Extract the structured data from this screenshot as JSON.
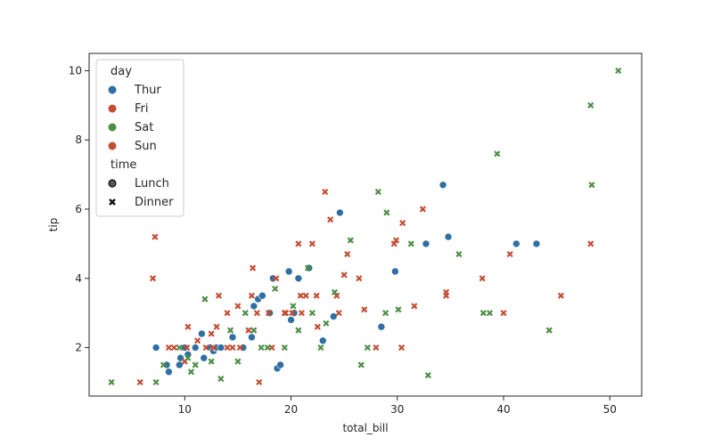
{
  "chart_data": {
    "type": "scatter",
    "title": "",
    "xlabel": "total_bill",
    "ylabel": "tip",
    "xlim": [
      1,
      53
    ],
    "ylim": [
      0.6,
      10.5
    ],
    "xticks": [
      10,
      20,
      30,
      40,
      50
    ],
    "yticks": [
      2,
      4,
      6,
      8,
      10
    ],
    "grid": false,
    "legend_position": "top-left",
    "legend": {
      "hue_title": "day",
      "hue": [
        {
          "name": "Thur",
          "color": "#2f6fa3"
        },
        {
          "name": "Fri",
          "color": "#c44e34"
        },
        {
          "name": "Sat",
          "color": "#4c8f44"
        },
        {
          "name": "Sun",
          "color": "#c44e34"
        }
      ],
      "style_title": "time",
      "style": [
        {
          "name": "Lunch",
          "marker": "circle"
        },
        {
          "name": "Dinner",
          "marker": "x"
        }
      ]
    },
    "series": [
      {
        "hue": "Thur",
        "style": "Lunch",
        "points": [
          [
            7.3,
            2.0
          ],
          [
            8.3,
            1.5
          ],
          [
            8.5,
            1.3
          ],
          [
            9.5,
            1.5
          ],
          [
            9.6,
            1.7
          ],
          [
            10.0,
            2.0
          ],
          [
            10.3,
            1.8
          ],
          [
            11.0,
            2.0
          ],
          [
            11.6,
            2.4
          ],
          [
            11.8,
            1.7
          ],
          [
            12.4,
            2.0
          ],
          [
            12.7,
            1.9
          ],
          [
            12.9,
            2.0
          ],
          [
            13.0,
            2.0
          ],
          [
            13.4,
            2.0
          ],
          [
            14.5,
            2.3
          ],
          [
            15.5,
            2.0
          ],
          [
            16.3,
            2.3
          ],
          [
            16.5,
            3.2
          ],
          [
            16.9,
            3.4
          ],
          [
            17.3,
            3.5
          ],
          [
            18.0,
            3.0
          ],
          [
            18.3,
            4.0
          ],
          [
            18.7,
            1.4
          ],
          [
            19.0,
            1.5
          ],
          [
            19.8,
            4.2
          ],
          [
            20.0,
            2.8
          ],
          [
            20.3,
            3.0
          ],
          [
            20.7,
            4.0
          ],
          [
            21.7,
            4.3
          ],
          [
            23.0,
            2.2
          ],
          [
            24.0,
            2.9
          ],
          [
            24.6,
            5.9
          ],
          [
            28.5,
            2.6
          ],
          [
            29.8,
            4.2
          ],
          [
            32.7,
            5.0
          ],
          [
            34.3,
            6.7
          ],
          [
            34.8,
            5.2
          ],
          [
            41.2,
            5.0
          ],
          [
            43.1,
            5.0
          ]
        ]
      },
      {
        "hue": "Fri",
        "style": "Dinner",
        "points": [
          [
            5.8,
            1.0
          ],
          [
            7.2,
            5.2
          ],
          [
            8.5,
            2.0
          ],
          [
            10.0,
            1.6
          ],
          [
            10.2,
            2.0
          ],
          [
            11.2,
            2.2
          ],
          [
            12.5,
            2.4
          ],
          [
            13.0,
            2.6
          ],
          [
            13.2,
            3.5
          ],
          [
            14.0,
            2.0
          ],
          [
            15.0,
            3.2
          ],
          [
            16.0,
            2.5
          ],
          [
            16.4,
            4.3
          ],
          [
            17.0,
            1.0
          ],
          [
            18.2,
            2.0
          ],
          [
            19.5,
            3.0
          ],
          [
            20.9,
            3.5
          ],
          [
            21.4,
            3.5
          ],
          [
            22.0,
            5.0
          ],
          [
            22.5,
            2.6
          ],
          [
            23.2,
            6.5
          ],
          [
            24.3,
            3.5
          ],
          [
            25.0,
            4.1
          ],
          [
            26.4,
            4.0
          ],
          [
            28.0,
            2.0
          ],
          [
            29.9,
            5.1
          ],
          [
            30.5,
            5.6
          ],
          [
            31.6,
            3.2
          ],
          [
            32.4,
            6.0
          ],
          [
            34.6,
            3.6
          ],
          [
            38.0,
            4.0
          ],
          [
            40.6,
            4.7
          ],
          [
            45.4,
            3.5
          ],
          [
            48.2,
            5.0
          ]
        ]
      },
      {
        "hue": "Sat",
        "style": "Dinner",
        "points": [
          [
            3.1,
            1.0
          ],
          [
            7.3,
            1.0
          ],
          [
            8.0,
            1.5
          ],
          [
            9.5,
            2.0
          ],
          [
            10.3,
            1.7
          ],
          [
            10.6,
            1.3
          ],
          [
            11.0,
            1.5
          ],
          [
            11.9,
            3.4
          ],
          [
            12.5,
            1.6
          ],
          [
            13.4,
            1.1
          ],
          [
            14.3,
            2.5
          ],
          [
            15.0,
            1.6
          ],
          [
            15.7,
            3.0
          ],
          [
            16.5,
            2.5
          ],
          [
            17.2,
            2.0
          ],
          [
            17.8,
            2.0
          ],
          [
            18.5,
            3.7
          ],
          [
            19.4,
            2.0
          ],
          [
            20.2,
            3.2
          ],
          [
            20.7,
            2.5
          ],
          [
            21.6,
            4.3
          ],
          [
            22.0,
            3.0
          ],
          [
            22.8,
            2.0
          ],
          [
            23.3,
            2.7
          ],
          [
            24.1,
            3.6
          ],
          [
            25.6,
            5.1
          ],
          [
            26.6,
            1.5
          ],
          [
            27.2,
            2.0
          ],
          [
            28.2,
            6.5
          ],
          [
            28.9,
            3.0
          ],
          [
            29.0,
            5.9
          ],
          [
            30.1,
            3.1
          ],
          [
            31.3,
            5.0
          ],
          [
            32.9,
            1.2
          ],
          [
            35.8,
            4.7
          ],
          [
            38.1,
            3.0
          ],
          [
            38.7,
            3.0
          ],
          [
            39.4,
            7.6
          ],
          [
            44.3,
            2.5
          ],
          [
            48.2,
            9.0
          ],
          [
            48.3,
            6.7
          ],
          [
            50.8,
            10.0
          ]
        ]
      },
      {
        "hue": "Sun",
        "style": "Dinner",
        "points": [
          [
            7.0,
            4.0
          ],
          [
            9.0,
            2.0
          ],
          [
            10.3,
            2.6
          ],
          [
            12.0,
            2.0
          ],
          [
            12.7,
            2.0
          ],
          [
            14.0,
            3.0
          ],
          [
            14.5,
            2.0
          ],
          [
            15.2,
            2.0
          ],
          [
            16.3,
            3.5
          ],
          [
            16.8,
            3.0
          ],
          [
            17.9,
            3.0
          ],
          [
            18.6,
            4.0
          ],
          [
            19.4,
            3.0
          ],
          [
            20.1,
            3.0
          ],
          [
            20.7,
            5.0
          ],
          [
            21.0,
            3.0
          ],
          [
            22.4,
            3.5
          ],
          [
            23.7,
            5.7
          ],
          [
            24.5,
            3.0
          ],
          [
            25.3,
            4.7
          ],
          [
            26.9,
            3.1
          ],
          [
            29.7,
            5.0
          ],
          [
            30.4,
            2.0
          ],
          [
            34.6,
            3.5
          ],
          [
            40.0,
            3.0
          ]
        ]
      }
    ]
  }
}
